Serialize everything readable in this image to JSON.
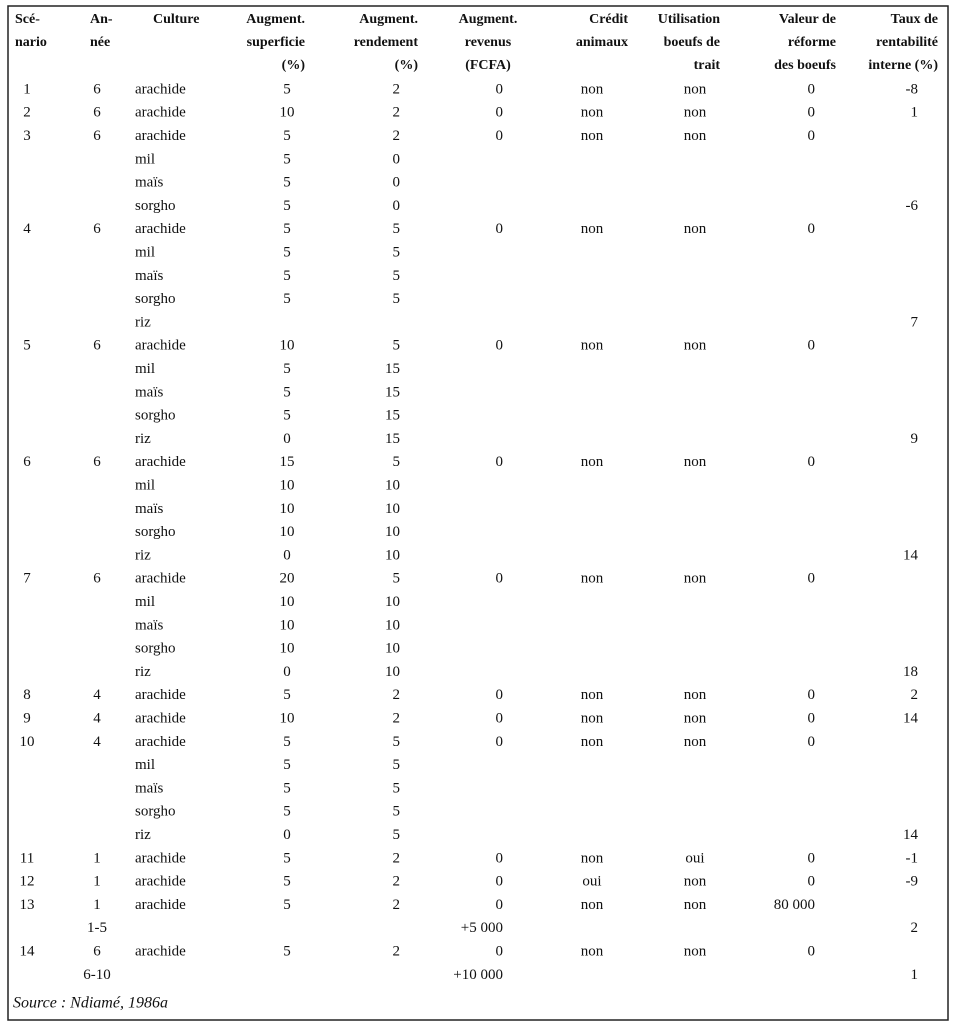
{
  "table": {
    "header": [
      [
        "Scé-",
        "nario"
      ],
      [
        "An-",
        "née"
      ],
      [
        "Culture"
      ],
      [
        "Augment.",
        "superficie",
        "(%)"
      ],
      [
        "Augment.",
        "rendement",
        "(%)"
      ],
      [
        "Augment.",
        "revenus",
        "(FCFA)"
      ],
      [
        "Crédit",
        "animaux"
      ],
      [
        "Utilisation",
        "boeufs de",
        "trait"
      ],
      [
        "Valeur de",
        "réforme",
        "des boeufs"
      ],
      [
        "Taux de",
        "rentabilité",
        "interne (%)"
      ]
    ],
    "rows": [
      [
        "1",
        "6",
        "arachide",
        "5",
        "2",
        "0",
        "non",
        "non",
        "0",
        "-8"
      ],
      [
        "2",
        "6",
        "arachide",
        "10",
        "2",
        "0",
        "non",
        "non",
        "0",
        "1"
      ],
      [
        "3",
        "6",
        "arachide",
        "5",
        "2",
        "0",
        "non",
        "non",
        "0",
        null
      ],
      [
        null,
        null,
        "mil",
        "5",
        "0",
        null,
        null,
        null,
        null,
        null
      ],
      [
        null,
        null,
        "maïs",
        "5",
        "0",
        null,
        null,
        null,
        null,
        null
      ],
      [
        null,
        null,
        "sorgho",
        "5",
        "0",
        null,
        null,
        null,
        null,
        "-6"
      ],
      [
        "4",
        "6",
        "arachide",
        "5",
        "5",
        "0",
        "non",
        "non",
        "0",
        null
      ],
      [
        null,
        null,
        "mil",
        "5",
        "5",
        null,
        null,
        null,
        null,
        null
      ],
      [
        null,
        null,
        "maïs",
        "5",
        "5",
        null,
        null,
        null,
        null,
        null
      ],
      [
        null,
        null,
        "sorgho",
        "5",
        "5",
        null,
        null,
        null,
        null,
        null
      ],
      [
        null,
        null,
        "riz",
        null,
        null,
        null,
        null,
        null,
        null,
        "7"
      ],
      [
        "5",
        "6",
        "arachide",
        "10",
        "5",
        "0",
        "non",
        "non",
        "0",
        null
      ],
      [
        null,
        null,
        "mil",
        "5",
        "15",
        null,
        null,
        null,
        null,
        null
      ],
      [
        null,
        null,
        "maïs",
        "5",
        "15",
        null,
        null,
        null,
        null,
        null
      ],
      [
        null,
        null,
        "sorgho",
        "5",
        "15",
        null,
        null,
        null,
        null,
        null
      ],
      [
        null,
        null,
        "riz",
        "0",
        "15",
        null,
        null,
        null,
        null,
        "9"
      ],
      [
        "6",
        "6",
        "arachide",
        "15",
        "5",
        "0",
        "non",
        "non",
        "0",
        null
      ],
      [
        null,
        null,
        "mil",
        "10",
        "10",
        null,
        null,
        null,
        null,
        null
      ],
      [
        null,
        null,
        "maïs",
        "10",
        "10",
        null,
        null,
        null,
        null,
        null
      ],
      [
        null,
        null,
        "sorgho",
        "10",
        "10",
        null,
        null,
        null,
        null,
        null
      ],
      [
        null,
        null,
        "riz",
        "0",
        "10",
        null,
        null,
        null,
        null,
        "14"
      ],
      [
        "7",
        "6",
        "arachide",
        "20",
        "5",
        "0",
        "non",
        "non",
        "0",
        null
      ],
      [
        null,
        null,
        "mil",
        "10",
        "10",
        null,
        null,
        null,
        null,
        null
      ],
      [
        null,
        null,
        "maïs",
        "10",
        "10",
        null,
        null,
        null,
        null,
        null
      ],
      [
        null,
        null,
        "sorgho",
        "10",
        "10",
        null,
        null,
        null,
        null,
        null
      ],
      [
        null,
        null,
        "riz",
        "0",
        "10",
        null,
        null,
        null,
        null,
        "18"
      ],
      [
        "8",
        "4",
        "arachide",
        "5",
        "2",
        "0",
        "non",
        "non",
        "0",
        "2"
      ],
      [
        "9",
        "4",
        "arachide",
        "10",
        "2",
        "0",
        "non",
        "non",
        "0",
        "14"
      ],
      [
        "10",
        "4",
        "arachide",
        "5",
        "5",
        "0",
        "non",
        "non",
        "0",
        null
      ],
      [
        null,
        null,
        "mil",
        "5",
        "5",
        null,
        null,
        null,
        null,
        null
      ],
      [
        null,
        null,
        "maïs",
        "5",
        "5",
        null,
        null,
        null,
        null,
        null
      ],
      [
        null,
        null,
        "sorgho",
        "5",
        "5",
        null,
        null,
        null,
        null,
        null
      ],
      [
        null,
        null,
        "riz",
        "0",
        "5",
        null,
        null,
        null,
        null,
        "14"
      ],
      [
        "11",
        "1",
        "arachide",
        "5",
        "2",
        "0",
        "non",
        "oui",
        "0",
        "-1"
      ],
      [
        "12",
        "1",
        "arachide",
        "5",
        "2",
        "0",
        "oui",
        "non",
        "0",
        "-9"
      ],
      [
        "13",
        "1",
        "arachide",
        "5",
        "2",
        "0",
        "non",
        "non",
        "80 000",
        null
      ],
      [
        null,
        "1-5",
        null,
        null,
        null,
        "+5 000",
        null,
        null,
        null,
        "2"
      ],
      [
        "14",
        "6",
        "arachide",
        "5",
        "2",
        "0",
        "non",
        "non",
        "0",
        null
      ],
      [
        null,
        "6-10",
        null,
        null,
        null,
        "+10 000",
        null,
        null,
        null,
        "1"
      ]
    ],
    "source": "Source : Ndiamé, 1986a"
  }
}
